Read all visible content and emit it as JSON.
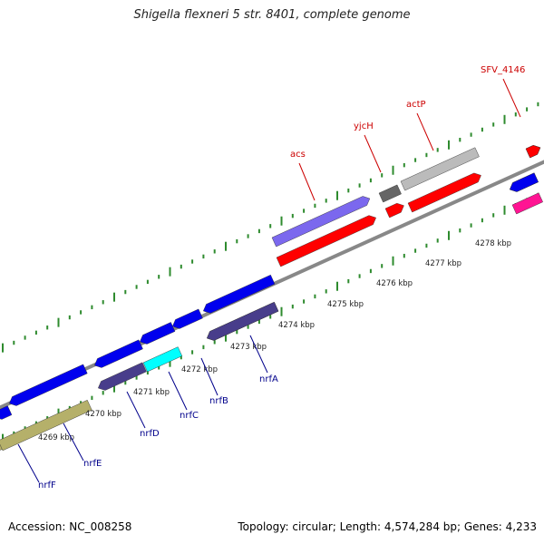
{
  "title": "Shigella flexneri 5 str. 8401, complete genome",
  "footer": {
    "accession": "Accession: NC_008258",
    "summary": "Topology: circular; Length: 4,574,284 bp; Genes: 4,233"
  },
  "map": {
    "backbone_color": "#888888",
    "tick_color": "#2e8b2e",
    "forward_label_color": "#cc0000",
    "reverse_label_color": "#00008b",
    "ruler": [
      {
        "label": "4269 kbp"
      },
      {
        "label": "4270 kbp"
      },
      {
        "label": "4271 kbp"
      },
      {
        "label": "4272 kbp"
      },
      {
        "label": "4273 kbp"
      },
      {
        "label": "4274 kbp"
      },
      {
        "label": "4275 kbp"
      },
      {
        "label": "4276 kbp"
      },
      {
        "label": "4277 kbp"
      },
      {
        "label": "4278 kbp"
      }
    ],
    "genes": [
      {
        "name": "",
        "strand": "reverse",
        "color": "#0000ee"
      },
      {
        "name": "",
        "strand": "reverse",
        "color": "#0000ee"
      },
      {
        "name": "",
        "strand": "reverse",
        "color": "#0000ee"
      },
      {
        "name": "",
        "strand": "reverse",
        "color": "#0000ee"
      },
      {
        "name": "",
        "strand": "reverse",
        "color": "#0000ee"
      },
      {
        "name": "",
        "strand": "reverse",
        "color": "#0000ee"
      },
      {
        "name": "",
        "strand": "reverse",
        "color": "#0000ee"
      },
      {
        "name": "",
        "strand": "forward",
        "color": "#7b68ee"
      },
      {
        "name": "",
        "strand": "forward",
        "color": "#666666"
      },
      {
        "name": "",
        "strand": "forward",
        "color": "#bbbbbb"
      },
      {
        "name": "",
        "strand": "forward",
        "color": "#ff0000"
      },
      {
        "name": "",
        "strand": "reverse",
        "color": "#0000ee"
      },
      {
        "name": "nrfF",
        "strand": "reverse",
        "color": "#b5b06a"
      },
      {
        "name": "nrfE",
        "strand": "reverse",
        "color": "#b5b06a"
      },
      {
        "name": "nrfD",
        "strand": "reverse",
        "color": "#483d8b"
      },
      {
        "name": "nrfC",
        "strand": "reverse",
        "color": "#00ffff"
      },
      {
        "name": "nrfB",
        "strand": "reverse",
        "color": "#483d8b"
      },
      {
        "name": "nrfA",
        "strand": "reverse",
        "color": "#483d8b"
      },
      {
        "name": "acs",
        "strand": "forward",
        "color": "#ff0000"
      },
      {
        "name": "yjcH",
        "strand": "forward",
        "color": "#ff0000"
      },
      {
        "name": "actP",
        "strand": "forward",
        "color": "#ff0000"
      },
      {
        "name": "SFV_4146",
        "strand": "forward",
        "color": "#ff0000"
      },
      {
        "name": "",
        "strand": "reverse",
        "color": "#ff1493"
      }
    ]
  }
}
